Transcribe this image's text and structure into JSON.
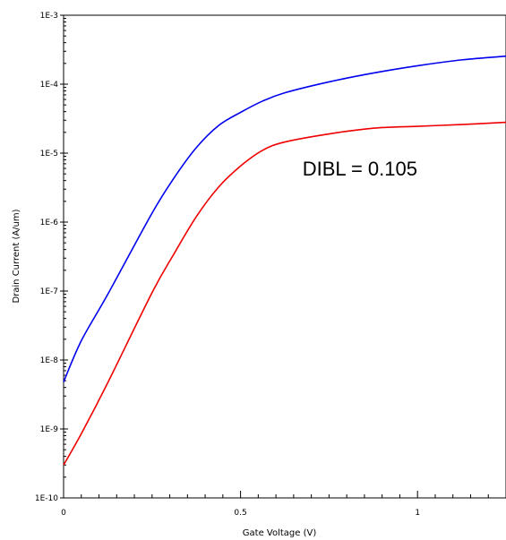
{
  "chart_data": {
    "type": "line",
    "title": "",
    "xlabel": "Gate Voltage (V)",
    "ylabel": "Drain Current (A/um)",
    "xlim": [
      0,
      1.25
    ],
    "ylim": [
      1e-10,
      0.001
    ],
    "yscale": "log",
    "grid": false,
    "x_ticks": [
      {
        "value": 0,
        "label": "0"
      },
      {
        "value": 0.5,
        "label": "0.5"
      },
      {
        "value": 1,
        "label": "1"
      }
    ],
    "y_ticks": [
      {
        "exp": -10,
        "label": "1E-10"
      },
      {
        "exp": -9,
        "label": "1E-9"
      },
      {
        "exp": -8,
        "label": "1E-8"
      },
      {
        "exp": -7,
        "label": "1E-7"
      },
      {
        "exp": -6,
        "label": "1E-6"
      },
      {
        "exp": -5,
        "label": "1E-5"
      },
      {
        "exp": -4,
        "label": "1E-4"
      },
      {
        "exp": -3,
        "label": "1E-3"
      }
    ],
    "series": [
      {
        "color": "#0000ee",
        "points": [
          [
            0,
            4.8e-09
          ],
          [
            0.05,
            1.9e-08
          ],
          [
            0.125,
            9e-08
          ],
          [
            0.25,
            1.35e-06
          ],
          [
            0.3125,
            4.4e-06
          ],
          [
            0.375,
            1.2e-05
          ],
          [
            0.4375,
            2.5e-05
          ],
          [
            0.5,
            3.9e-05
          ],
          [
            0.5625,
            5.7e-05
          ],
          [
            0.625,
            7.5e-05
          ],
          [
            0.75,
            0.000108
          ],
          [
            0.875,
            0.000145
          ],
          [
            1.0,
            0.000185
          ],
          [
            1.125,
            0.000225
          ],
          [
            1.25,
            0.000255
          ]
        ]
      },
      {
        "color": "#ee0000",
        "points": [
          [
            0,
            3e-10
          ],
          [
            0.05,
            8.5e-10
          ],
          [
            0.125,
            4.7e-09
          ],
          [
            0.25,
            9.5e-08
          ],
          [
            0.3125,
            3.5e-07
          ],
          [
            0.375,
            1.2e-06
          ],
          [
            0.4375,
            3.2e-06
          ],
          [
            0.5,
            6.5e-06
          ],
          [
            0.5625,
            1.1e-05
          ],
          [
            0.625,
            1.45e-05
          ],
          [
            0.75,
            1.9e-05
          ],
          [
            0.875,
            2.3e-05
          ],
          [
            1.0,
            2.45e-05
          ],
          [
            1.125,
            2.6e-05
          ],
          [
            1.25,
            2.8e-05
          ]
        ]
      }
    ],
    "annotations": [
      {
        "text": "DIBL = 0.105",
        "x": 0.675,
        "y": 6e-06
      }
    ]
  }
}
